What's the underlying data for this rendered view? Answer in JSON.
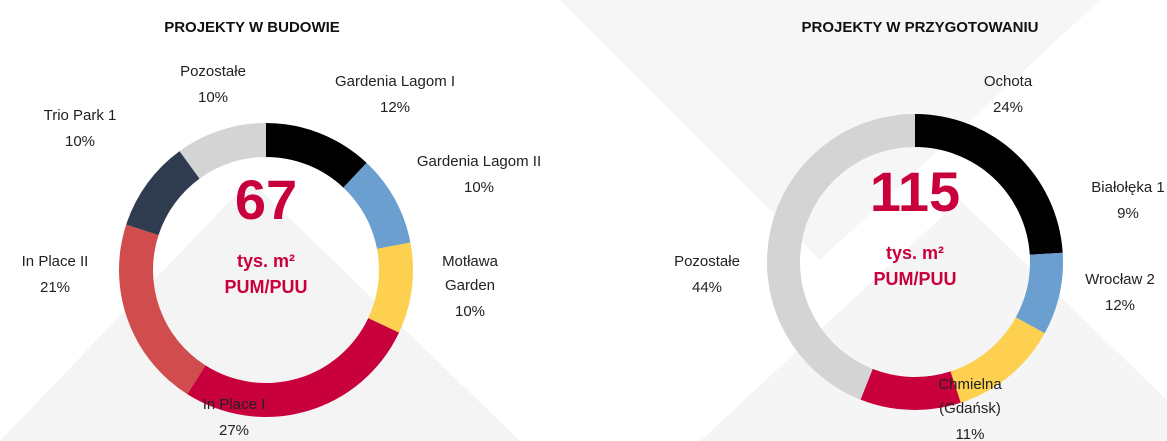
{
  "chart_data": [
    {
      "type": "donut",
      "title": "PROJEKTY W BUDOWIE",
      "center_value": "67",
      "center_unit": "tys. m²",
      "center_label": "PUM/PUU",
      "categories": [
        [
          "Gardenia Lagom I"
        ],
        [
          "Gardenia Lagom II"
        ],
        [
          "Motława",
          "Garden"
        ],
        [
          "In Place I"
        ],
        [
          "In Place II"
        ],
        [
          "Trio Park 1"
        ],
        [
          "Pozostałe"
        ]
      ],
      "values": [
        12,
        10,
        10,
        27,
        21,
        10,
        10
      ],
      "value_labels": [
        "12%",
        "10%",
        "10%",
        "27%",
        "21%",
        "10%",
        "10%"
      ],
      "colors": [
        "#000000",
        "#6a9fd0",
        "#fdd04f",
        "#c8003c",
        "#d14c4c",
        "#2f3c50",
        "#d4d4d4"
      ]
    },
    {
      "type": "donut",
      "title": "PROJEKTY W PRZYGOTOWANIU",
      "center_value": "115",
      "center_unit": "tys. m²",
      "center_label": "PUM/PUU",
      "categories": [
        [
          "Ochota"
        ],
        [
          "Białołęka 1"
        ],
        [
          "Wrocław 2"
        ],
        [
          "Chmielna",
          "(Gdańsk)"
        ],
        [
          "Pozostałe"
        ]
      ],
      "values": [
        24,
        9,
        12,
        11,
        44
      ],
      "value_labels": [
        "24%",
        "9%",
        "12%",
        "11%",
        "44%"
      ],
      "colors": [
        "#000000",
        "#6a9fd0",
        "#fdd04f",
        "#c8003c",
        "#d4d4d4"
      ]
    }
  ]
}
